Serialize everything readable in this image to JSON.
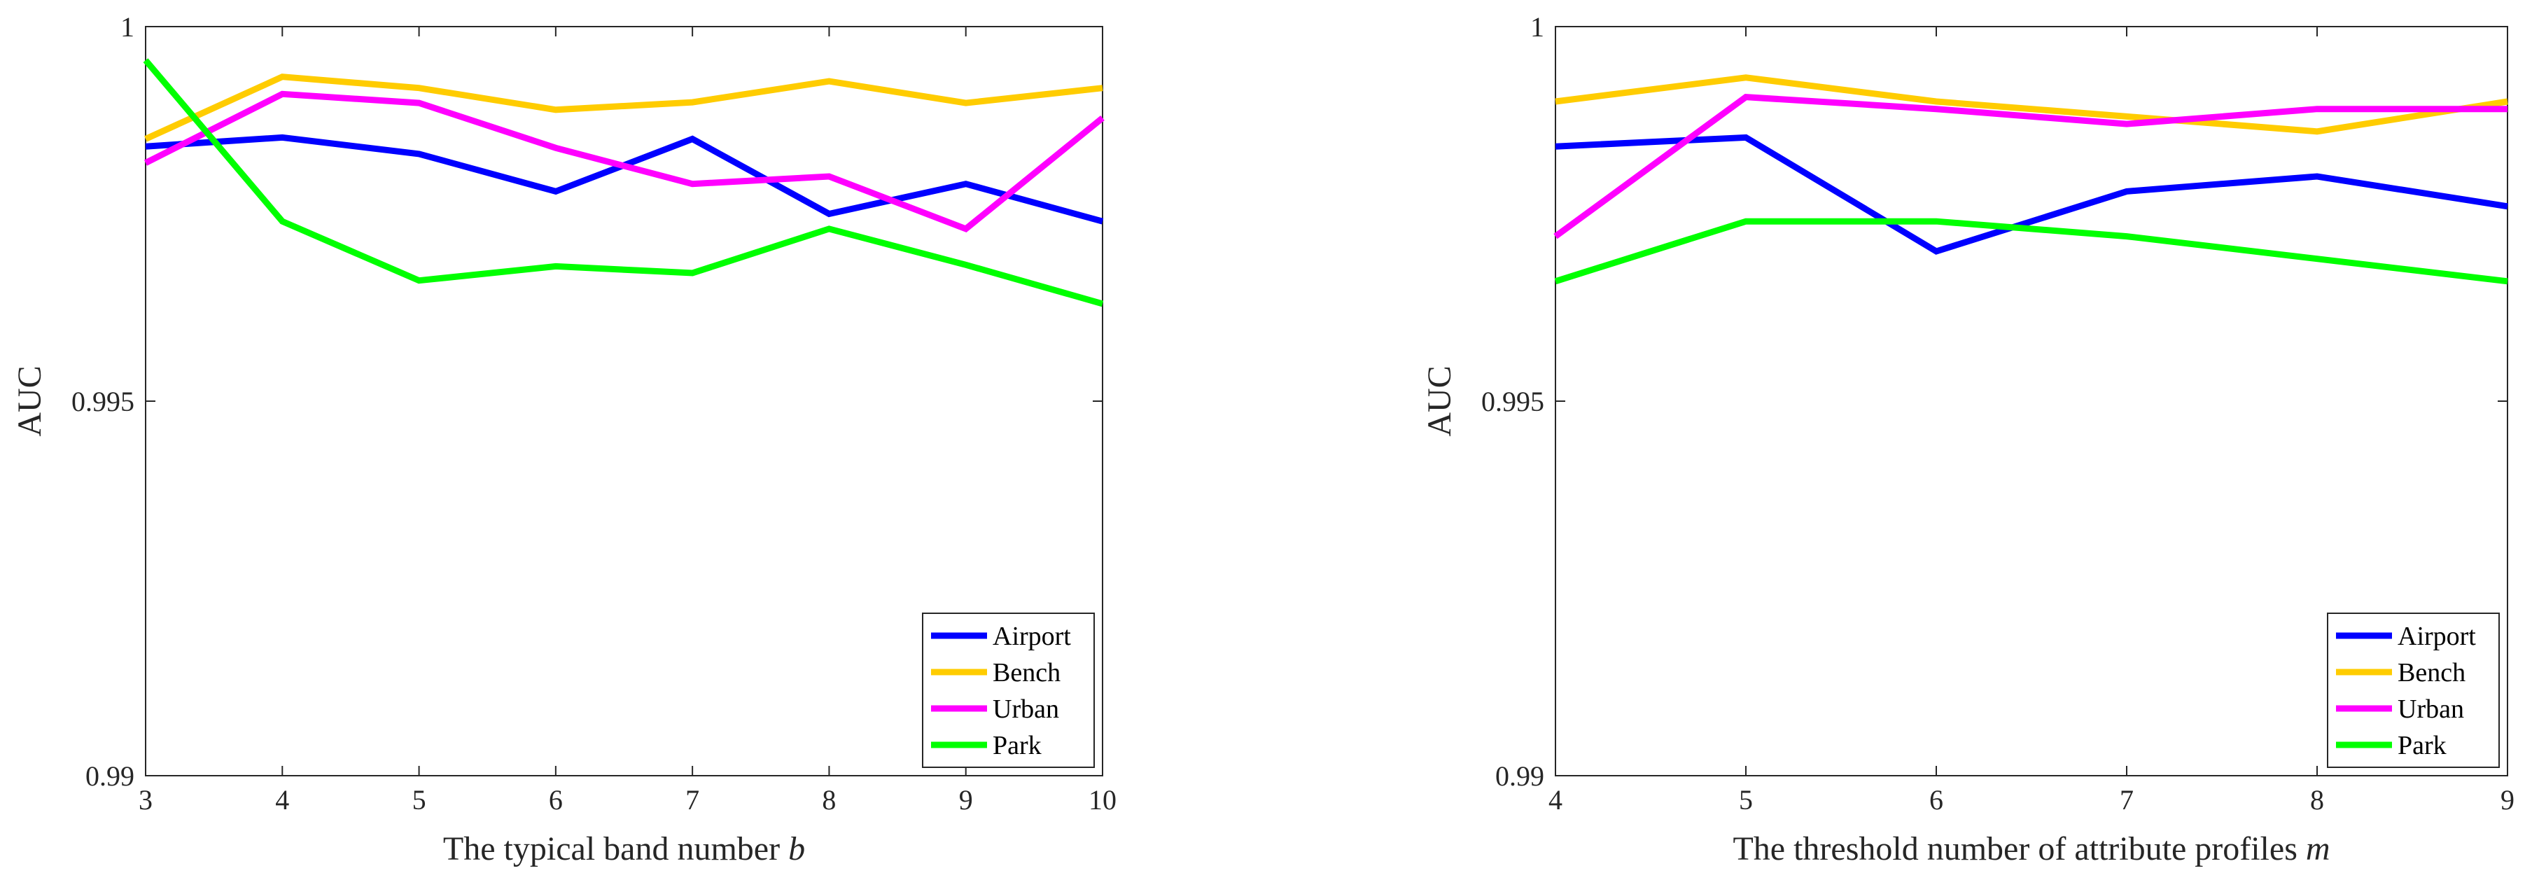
{
  "chart_data": [
    {
      "type": "line",
      "title": "",
      "xlabel": "The typical band number",
      "xlabel_var": "b",
      "ylabel": "AUC",
      "x": [
        3,
        4,
        5,
        6,
        7,
        8,
        9,
        10
      ],
      "xlim": [
        3,
        10
      ],
      "ylim": [
        0.99,
        1
      ],
      "yticks": [
        0.99,
        0.995,
        1
      ],
      "ytick_labels": [
        "0.99",
        "0.995",
        "1"
      ],
      "grid": false,
      "legend_position": "bottom-right",
      "series": [
        {
          "name": "Airport",
          "color": "#0000ff",
          "values": [
            0.9984,
            0.99852,
            0.9983,
            0.9978,
            0.9985,
            0.9975,
            0.9979,
            0.9974
          ]
        },
        {
          "name": "Bench",
          "color": "#ffcc00",
          "values": [
            0.9985,
            0.99933,
            0.99918,
            0.99889,
            0.99899,
            0.99927,
            0.99898,
            0.99918
          ]
        },
        {
          "name": "Urban",
          "color": "#ff00ff",
          "values": [
            0.99818,
            0.9991,
            0.99898,
            0.99838,
            0.9979,
            0.998,
            0.9973,
            0.99878
          ]
        },
        {
          "name": "Park",
          "color": "#00ff00",
          "values": [
            0.99955,
            0.9974,
            0.99661,
            0.9968,
            0.99671,
            0.9973,
            0.99682,
            0.9963
          ]
        }
      ]
    },
    {
      "type": "line",
      "title": "",
      "xlabel": "The threshold number of attribute profiles",
      "xlabel_var": "m",
      "ylabel": "AUC",
      "x": [
        4,
        5,
        6,
        7,
        8,
        9
      ],
      "xlim": [
        4,
        9
      ],
      "ylim": [
        0.99,
        1
      ],
      "yticks": [
        0.99,
        0.995,
        1
      ],
      "ytick_labels": [
        "0.99",
        "0.995",
        "1"
      ],
      "grid": false,
      "legend_position": "bottom-right",
      "series": [
        {
          "name": "Airport",
          "color": "#0000ff",
          "values": [
            0.9984,
            0.99852,
            0.997,
            0.9978,
            0.998,
            0.9976
          ]
        },
        {
          "name": "Bench",
          "color": "#ffcc00",
          "values": [
            0.999,
            0.99932,
            0.999,
            0.9988,
            0.9986,
            0.999
          ]
        },
        {
          "name": "Urban",
          "color": "#ff00ff",
          "values": [
            0.9972,
            0.99906,
            0.9989,
            0.9987,
            0.9989,
            0.9989
          ]
        },
        {
          "name": "Park",
          "color": "#00ff00",
          "values": [
            0.9966,
            0.9974,
            0.9974,
            0.9972,
            0.9969,
            0.9966
          ]
        }
      ]
    }
  ]
}
